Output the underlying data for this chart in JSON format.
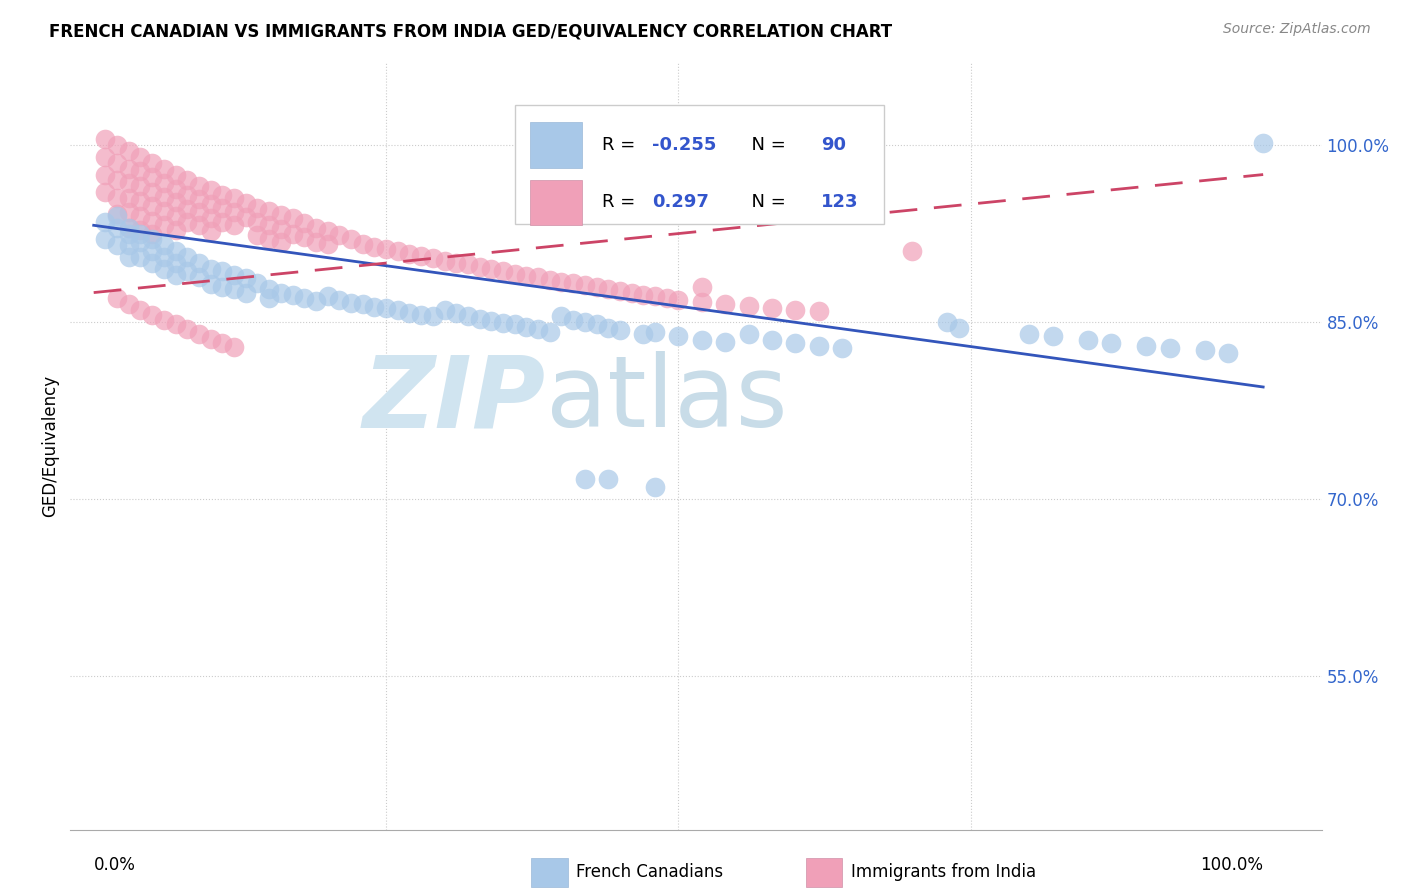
{
  "title": "FRENCH CANADIAN VS IMMIGRANTS FROM INDIA GED/EQUIVALENCY CORRELATION CHART",
  "source": "Source: ZipAtlas.com",
  "ylabel": "GED/Equivalency",
  "yticks": [
    0.55,
    0.7,
    0.85,
    1.0
  ],
  "ytick_labels": [
    "55.0%",
    "70.0%",
    "85.0%",
    "100.0%"
  ],
  "xlim": [
    -0.02,
    1.05
  ],
  "ylim": [
    0.42,
    1.07
  ],
  "blue_color": "#a8c8e8",
  "pink_color": "#f0a0b8",
  "blue_line_color": "#3355bb",
  "pink_line_color": "#cc4466",
  "legend_label_blue": "French Canadians",
  "legend_label_pink": "Immigrants from India",
  "R_blue": "-0.255",
  "N_blue": "90",
  "R_pink": "0.297",
  "N_pink": "123",
  "blue_trendline": [
    0.0,
    1.0,
    0.932,
    0.795
  ],
  "pink_trendline": [
    0.0,
    1.0,
    0.875,
    0.975
  ],
  "blue_scatter_x": [
    0.01,
    0.01,
    0.02,
    0.02,
    0.02,
    0.03,
    0.03,
    0.03,
    0.03,
    0.04,
    0.04,
    0.04,
    0.05,
    0.05,
    0.05,
    0.06,
    0.06,
    0.06,
    0.07,
    0.07,
    0.07,
    0.08,
    0.08,
    0.09,
    0.09,
    0.1,
    0.1,
    0.11,
    0.11,
    0.12,
    0.12,
    0.13,
    0.13,
    0.14,
    0.15,
    0.15,
    0.16,
    0.17,
    0.18,
    0.19,
    0.2,
    0.21,
    0.22,
    0.23,
    0.24,
    0.25,
    0.26,
    0.27,
    0.28,
    0.29,
    0.3,
    0.31,
    0.32,
    0.33,
    0.34,
    0.35,
    0.36,
    0.37,
    0.38,
    0.39,
    0.4,
    0.41,
    0.42,
    0.43,
    0.44,
    0.45,
    0.47,
    0.48,
    0.5,
    0.52,
    0.54,
    0.56,
    0.58,
    0.6,
    0.62,
    0.64,
    0.73,
    0.74,
    0.8,
    0.82,
    0.85,
    0.87,
    0.9,
    0.92,
    0.95,
    0.97,
    1.0,
    0.42,
    0.44,
    0.48
  ],
  "blue_scatter_y": [
    0.935,
    0.92,
    0.94,
    0.93,
    0.915,
    0.93,
    0.925,
    0.915,
    0.905,
    0.925,
    0.918,
    0.905,
    0.92,
    0.91,
    0.9,
    0.915,
    0.905,
    0.895,
    0.91,
    0.9,
    0.89,
    0.905,
    0.893,
    0.9,
    0.888,
    0.895,
    0.882,
    0.893,
    0.88,
    0.89,
    0.878,
    0.887,
    0.875,
    0.883,
    0.878,
    0.87,
    0.875,
    0.873,
    0.87,
    0.868,
    0.872,
    0.869,
    0.866,
    0.865,
    0.863,
    0.862,
    0.86,
    0.858,
    0.856,
    0.855,
    0.86,
    0.858,
    0.855,
    0.853,
    0.851,
    0.849,
    0.848,
    0.846,
    0.844,
    0.842,
    0.855,
    0.852,
    0.85,
    0.848,
    0.845,
    0.843,
    0.84,
    0.842,
    0.838,
    0.835,
    0.833,
    0.84,
    0.835,
    0.832,
    0.83,
    0.828,
    0.85,
    0.845,
    0.84,
    0.838,
    0.835,
    0.832,
    0.83,
    0.828,
    0.826,
    0.824,
    1.002,
    0.717,
    0.717,
    0.71
  ],
  "pink_scatter_x": [
    0.01,
    0.01,
    0.01,
    0.01,
    0.02,
    0.02,
    0.02,
    0.02,
    0.02,
    0.03,
    0.03,
    0.03,
    0.03,
    0.03,
    0.03,
    0.04,
    0.04,
    0.04,
    0.04,
    0.04,
    0.04,
    0.05,
    0.05,
    0.05,
    0.05,
    0.05,
    0.05,
    0.06,
    0.06,
    0.06,
    0.06,
    0.06,
    0.07,
    0.07,
    0.07,
    0.07,
    0.07,
    0.08,
    0.08,
    0.08,
    0.08,
    0.09,
    0.09,
    0.09,
    0.09,
    0.1,
    0.1,
    0.1,
    0.1,
    0.11,
    0.11,
    0.11,
    0.12,
    0.12,
    0.12,
    0.13,
    0.13,
    0.14,
    0.14,
    0.14,
    0.15,
    0.15,
    0.15,
    0.16,
    0.16,
    0.16,
    0.17,
    0.17,
    0.18,
    0.18,
    0.19,
    0.19,
    0.2,
    0.2,
    0.21,
    0.22,
    0.23,
    0.24,
    0.25,
    0.26,
    0.27,
    0.28,
    0.29,
    0.3,
    0.31,
    0.32,
    0.33,
    0.34,
    0.35,
    0.36,
    0.37,
    0.38,
    0.39,
    0.4,
    0.41,
    0.42,
    0.43,
    0.44,
    0.45,
    0.46,
    0.47,
    0.48,
    0.49,
    0.5,
    0.52,
    0.54,
    0.56,
    0.58,
    0.6,
    0.62,
    0.02,
    0.03,
    0.04,
    0.05,
    0.06,
    0.07,
    0.08,
    0.09,
    0.1,
    0.11,
    0.12,
    0.52,
    0.7
  ],
  "pink_scatter_y": [
    1.005,
    0.99,
    0.975,
    0.96,
    1.0,
    0.985,
    0.97,
    0.955,
    0.942,
    0.995,
    0.98,
    0.968,
    0.955,
    0.943,
    0.93,
    0.99,
    0.978,
    0.965,
    0.953,
    0.94,
    0.928,
    0.985,
    0.973,
    0.96,
    0.948,
    0.936,
    0.925,
    0.98,
    0.968,
    0.956,
    0.944,
    0.932,
    0.975,
    0.963,
    0.952,
    0.94,
    0.928,
    0.97,
    0.958,
    0.946,
    0.935,
    0.965,
    0.954,
    0.943,
    0.932,
    0.962,
    0.95,
    0.938,
    0.927,
    0.958,
    0.947,
    0.935,
    0.955,
    0.943,
    0.932,
    0.951,
    0.939,
    0.947,
    0.935,
    0.924,
    0.944,
    0.932,
    0.92,
    0.941,
    0.929,
    0.918,
    0.938,
    0.925,
    0.934,
    0.922,
    0.93,
    0.918,
    0.927,
    0.916,
    0.924,
    0.92,
    0.916,
    0.914,
    0.912,
    0.91,
    0.908,
    0.906,
    0.904,
    0.902,
    0.9,
    0.899,
    0.897,
    0.895,
    0.893,
    0.891,
    0.889,
    0.888,
    0.886,
    0.884,
    0.883,
    0.881,
    0.88,
    0.878,
    0.876,
    0.875,
    0.873,
    0.872,
    0.87,
    0.869,
    0.867,
    0.865,
    0.864,
    0.862,
    0.86,
    0.859,
    0.87,
    0.865,
    0.86,
    0.856,
    0.852,
    0.848,
    0.844,
    0.84,
    0.836,
    0.832,
    0.829,
    0.88,
    0.91
  ]
}
